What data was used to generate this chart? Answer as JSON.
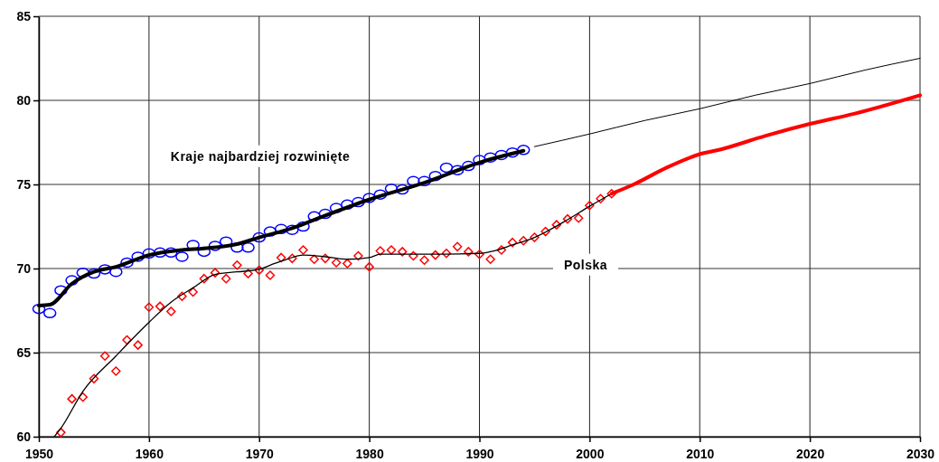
{
  "chart_data": {
    "type": "line",
    "xlim": [
      1950,
      2030
    ],
    "ylim": [
      60,
      85
    ],
    "xticks": [
      1950,
      1960,
      1970,
      1980,
      1990,
      2000,
      2010,
      2020,
      2030
    ],
    "yticks": [
      60,
      65,
      70,
      75,
      80,
      85
    ],
    "grid": true,
    "series": [
      {
        "type": "scatter",
        "marker": "circle",
        "color": "#0000ff",
        "x": [
          1950,
          1951,
          1952,
          1953,
          1954,
          1955,
          1956,
          1957,
          1958,
          1959,
          1960,
          1961,
          1962,
          1963,
          1964,
          1965,
          1966,
          1967,
          1968,
          1969,
          1970,
          1971,
          1972,
          1973,
          1974,
          1975,
          1976,
          1977,
          1978,
          1979,
          1980,
          1981,
          1982,
          1983,
          1984,
          1985,
          1986,
          1987,
          1988,
          1989,
          1990,
          1991,
          1992,
          1993,
          1994
        ],
        "values": [
          67.6,
          67.35,
          68.7,
          69.3,
          69.75,
          69.7,
          69.95,
          69.8,
          70.35,
          70.7,
          70.9,
          70.95,
          70.95,
          70.7,
          71.4,
          71.0,
          71.35,
          71.6,
          71.25,
          71.25,
          71.85,
          72.2,
          72.35,
          72.3,
          72.5,
          73.1,
          73.25,
          73.6,
          73.8,
          73.95,
          74.2,
          74.4,
          74.75,
          74.7,
          75.2,
          75.2,
          75.5,
          76.0,
          75.85,
          76.1,
          76.45,
          76.6,
          76.75,
          76.9,
          77.05
        ]
      },
      {
        "marker": "none",
        "color": "#000000",
        "x": [
          1950,
          1951,
          1953,
          1955,
          1957,
          1960,
          1963,
          1965,
          1968,
          1970,
          1973,
          1975,
          1980,
          1985,
          1990,
          1994
        ],
        "values": [
          67.8,
          67.85,
          69.1,
          69.8,
          70.1,
          70.8,
          71.1,
          71.2,
          71.45,
          71.85,
          72.4,
          72.9,
          74.1,
          75.1,
          76.3,
          77.0
        ]
      },
      {
        "marker": "none",
        "color": "#000000",
        "x": [
          1995,
          2000,
          2005,
          2010,
          2015,
          2020,
          2025,
          2030
        ],
        "values": [
          77.25,
          78.0,
          78.8,
          79.5,
          80.3,
          81.0,
          81.8,
          82.5
        ]
      },
      {
        "type": "scatter",
        "marker": "diamond",
        "color": "#ff0000",
        "x": [
          1952,
          1953,
          1954,
          1955,
          1956,
          1957,
          1958,
          1959,
          1960,
          1961,
          1962,
          1963,
          1964,
          1965,
          1966,
          1967,
          1968,
          1969,
          1970,
          1971,
          1972,
          1973,
          1974,
          1975,
          1976,
          1977,
          1978,
          1979,
          1980,
          1981,
          1982,
          1983,
          1984,
          1985,
          1986,
          1987,
          1988,
          1989,
          1990,
          1991,
          1992,
          1993,
          1994,
          1995,
          1996,
          1997,
          1998,
          1999,
          2000,
          2001,
          2002
        ],
        "values": [
          60.25,
          62.25,
          62.35,
          63.45,
          64.8,
          63.9,
          65.75,
          65.45,
          67.7,
          67.75,
          67.45,
          68.35,
          68.6,
          69.4,
          69.75,
          69.4,
          70.2,
          69.7,
          69.9,
          69.6,
          70.65,
          70.6,
          71.1,
          70.55,
          70.6,
          70.35,
          70.3,
          70.75,
          70.1,
          71.05,
          71.1,
          71.0,
          70.75,
          70.5,
          70.8,
          70.9,
          71.3,
          71.0,
          70.85,
          70.55,
          71.1,
          71.55,
          71.65,
          71.85,
          72.2,
          72.6,
          72.95,
          73.0,
          73.75,
          74.15,
          74.45
        ]
      },
      {
        "marker": "none",
        "color": "#000000",
        "x": [
          1951.4,
          1952,
          1954,
          1957,
          1960,
          1962,
          1964,
          1966,
          1968,
          1970,
          1971,
          1972.5,
          1974,
          1976,
          1978,
          1980,
          1981,
          1985,
          1990,
          1991,
          1993,
          1995,
          1998,
          2000,
          2002
        ],
        "values": [
          60,
          60.5,
          62.7,
          64.8,
          66.8,
          68.0,
          68.85,
          69.65,
          69.8,
          69.95,
          70.2,
          70.55,
          70.8,
          70.7,
          70.55,
          70.65,
          70.85,
          70.85,
          70.9,
          71.0,
          71.4,
          71.85,
          72.9,
          73.7,
          74.45
        ]
      },
      {
        "marker": "none",
        "color": "#ff0000",
        "x": [
          2002,
          2004,
          2007,
          2010,
          2012,
          2016,
          2020,
          2024,
          2030
        ],
        "values": [
          74.45,
          75.0,
          76.0,
          76.8,
          77.1,
          77.9,
          78.6,
          79.2,
          80.3
        ]
      }
    ],
    "annotations": [
      "Kraje najbardziej rozwinięte",
      "Polska"
    ]
  }
}
